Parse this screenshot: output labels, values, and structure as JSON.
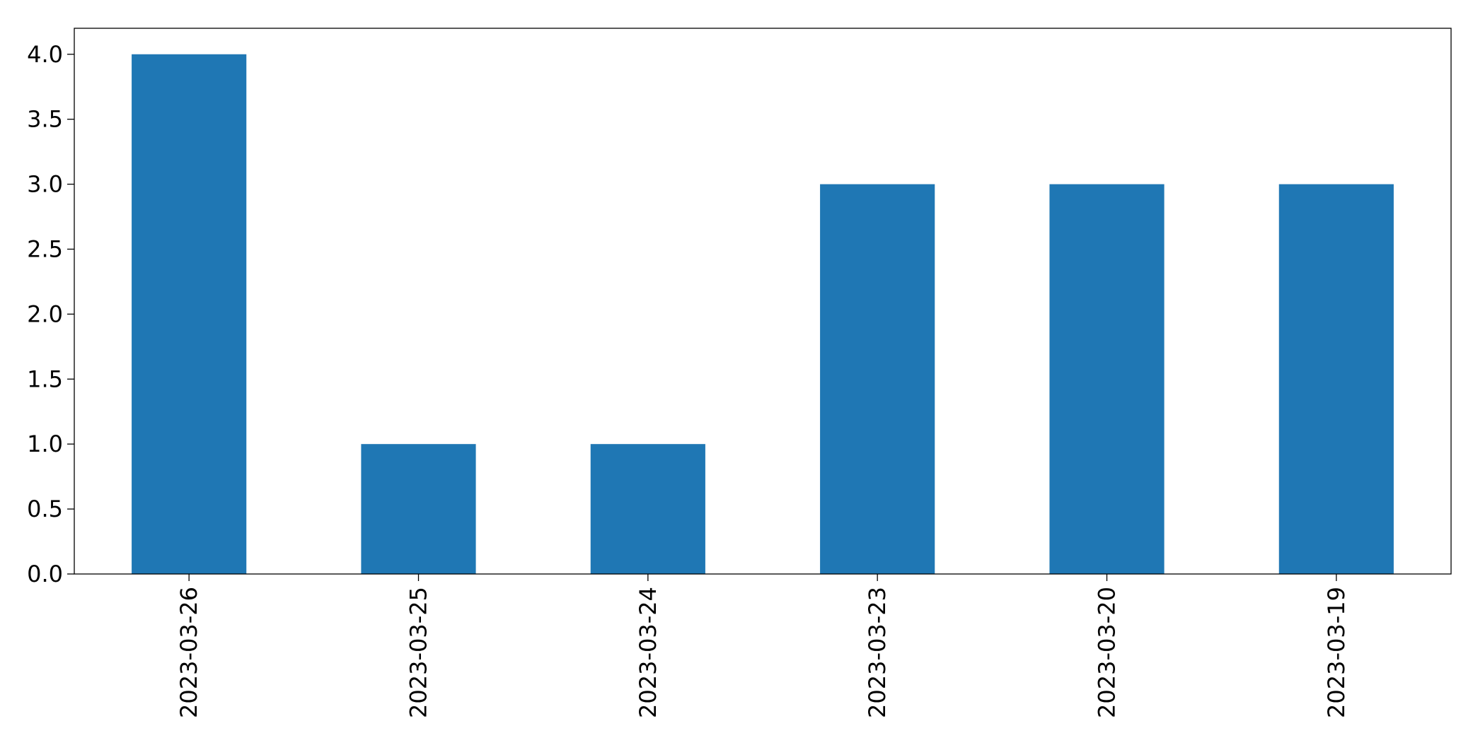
{
  "chart_data": {
    "type": "bar",
    "title": "",
    "xlabel": "",
    "ylabel": "",
    "categories": [
      "2023-03-26",
      "2023-03-25",
      "2023-03-24",
      "2023-03-23",
      "2023-03-20",
      "2023-03-19"
    ],
    "values": [
      4,
      1,
      1,
      3,
      3,
      3
    ],
    "ylim": [
      0,
      4.2
    ],
    "yticks": [
      "0.0",
      "0.5",
      "1.0",
      "1.5",
      "2.0",
      "2.5",
      "3.0",
      "3.5",
      "4.0"
    ],
    "grid": false,
    "legend": "none",
    "bar_color": "#1f77b4"
  }
}
